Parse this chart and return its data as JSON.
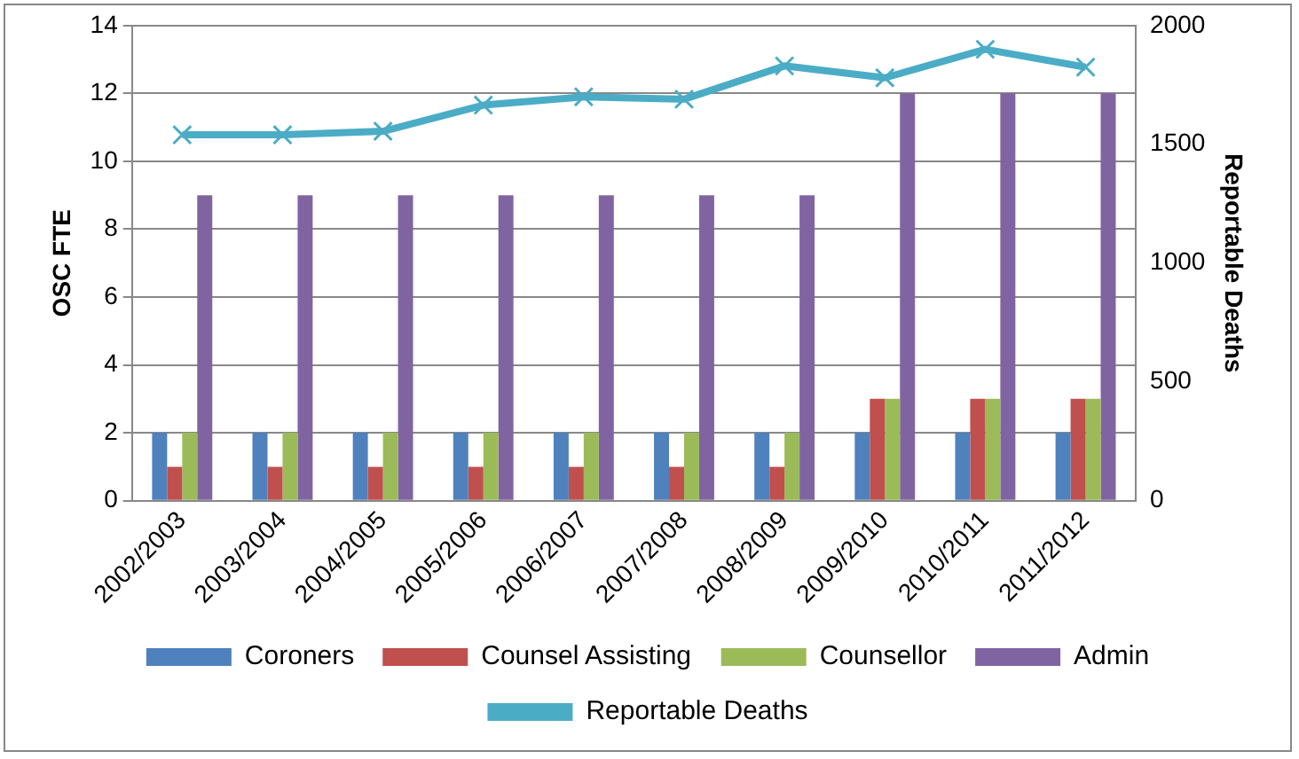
{
  "chart_data": {
    "type": "bar",
    "ylabel": "OSC FTE",
    "y2label": "Reportable Deaths",
    "categories": [
      "2002/2003",
      "2003/2004",
      "2004/2005",
      "2005/2006",
      "2006/2007",
      "2007/2008",
      "2008/2009",
      "2009/2010",
      "2010/2011",
      "2011/2012"
    ],
    "series": [
      {
        "name": "Coroners",
        "color": "#4f81bd",
        "values": [
          2,
          2,
          2,
          2,
          2,
          2,
          2,
          2,
          2,
          2
        ]
      },
      {
        "name": "Counsel Assisting",
        "color": "#c0504d",
        "values": [
          1,
          1,
          1,
          1,
          1,
          1,
          1,
          3,
          3,
          3
        ]
      },
      {
        "name": "Counsellor",
        "color": "#9bbb59",
        "values": [
          2,
          2,
          2,
          2,
          2,
          2,
          2,
          3,
          3,
          3
        ]
      },
      {
        "name": "Admin",
        "color": "#8064a2",
        "values": [
          9,
          9,
          9,
          9,
          9,
          9,
          9,
          12,
          12,
          12
        ]
      },
      {
        "name": "Reportable Deaths",
        "type": "line",
        "axis": "y2",
        "color": "#4bacc6",
        "marker": "cross",
        "values": [
          1540,
          1540,
          1555,
          1665,
          1700,
          1690,
          1830,
          1780,
          1900,
          1825
        ]
      }
    ],
    "ylim": [
      0,
      14
    ],
    "yticks": [
      0,
      2,
      4,
      6,
      8,
      10,
      12,
      14
    ],
    "y2lim": [
      0,
      2000
    ],
    "y2ticks": [
      0,
      500,
      1000,
      1500,
      2000
    ],
    "grid": "y",
    "legend": "bottom"
  }
}
